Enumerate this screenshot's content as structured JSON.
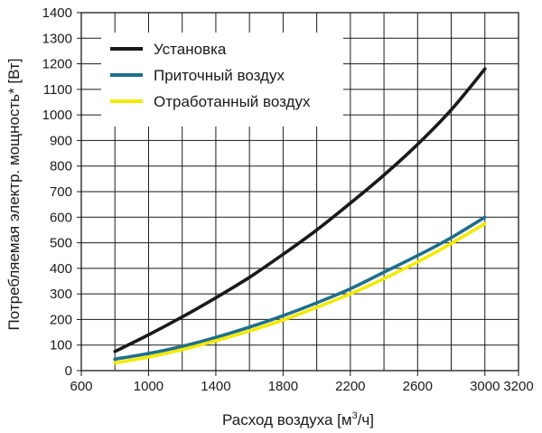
{
  "chart_data": {
    "type": "line",
    "xlabel_main": "Расход воздуха [м",
    "xlabel_sup": "3",
    "xlabel_tail": "/ч]",
    "ylabel": "Потребляемая электр. мощность* [Вт]",
    "xlim": [
      600,
      3200
    ],
    "ylim": [
      0,
      1400
    ],
    "x_ticks": [
      600,
      1000,
      1400,
      1800,
      2200,
      2600,
      3000,
      3200
    ],
    "y_ticks": [
      0,
      100,
      200,
      300,
      400,
      500,
      600,
      700,
      800,
      900,
      1000,
      1100,
      1200,
      1300,
      1400
    ],
    "x_grid_step": 200,
    "y_grid_step": 100,
    "grid": true,
    "legend_position": "top-left",
    "series": [
      {
        "name": "Установка",
        "color": "#1a1a1a",
        "x": [
          800,
          1000,
          1200,
          1400,
          1600,
          1800,
          2000,
          2200,
          2400,
          2600,
          2800,
          3000
        ],
        "y": [
          75,
          140,
          210,
          285,
          365,
          455,
          550,
          655,
          765,
          885,
          1020,
          1180
        ]
      },
      {
        "name": "Приточный воздух",
        "color": "#1f6f8b",
        "x": [
          800,
          1000,
          1200,
          1400,
          1600,
          1800,
          2000,
          2200,
          2400,
          2600,
          2800,
          3000
        ],
        "y": [
          45,
          67,
          95,
          130,
          170,
          215,
          265,
          320,
          385,
          450,
          520,
          600
        ]
      },
      {
        "name": "Отработанный воздух",
        "color": "#f2ea00",
        "x": [
          800,
          1000,
          1200,
          1400,
          1600,
          1800,
          2000,
          2200,
          2400,
          2600,
          2800,
          3000
        ],
        "y": [
          30,
          53,
          82,
          117,
          155,
          198,
          247,
          300,
          360,
          425,
          497,
          575
        ]
      }
    ]
  }
}
